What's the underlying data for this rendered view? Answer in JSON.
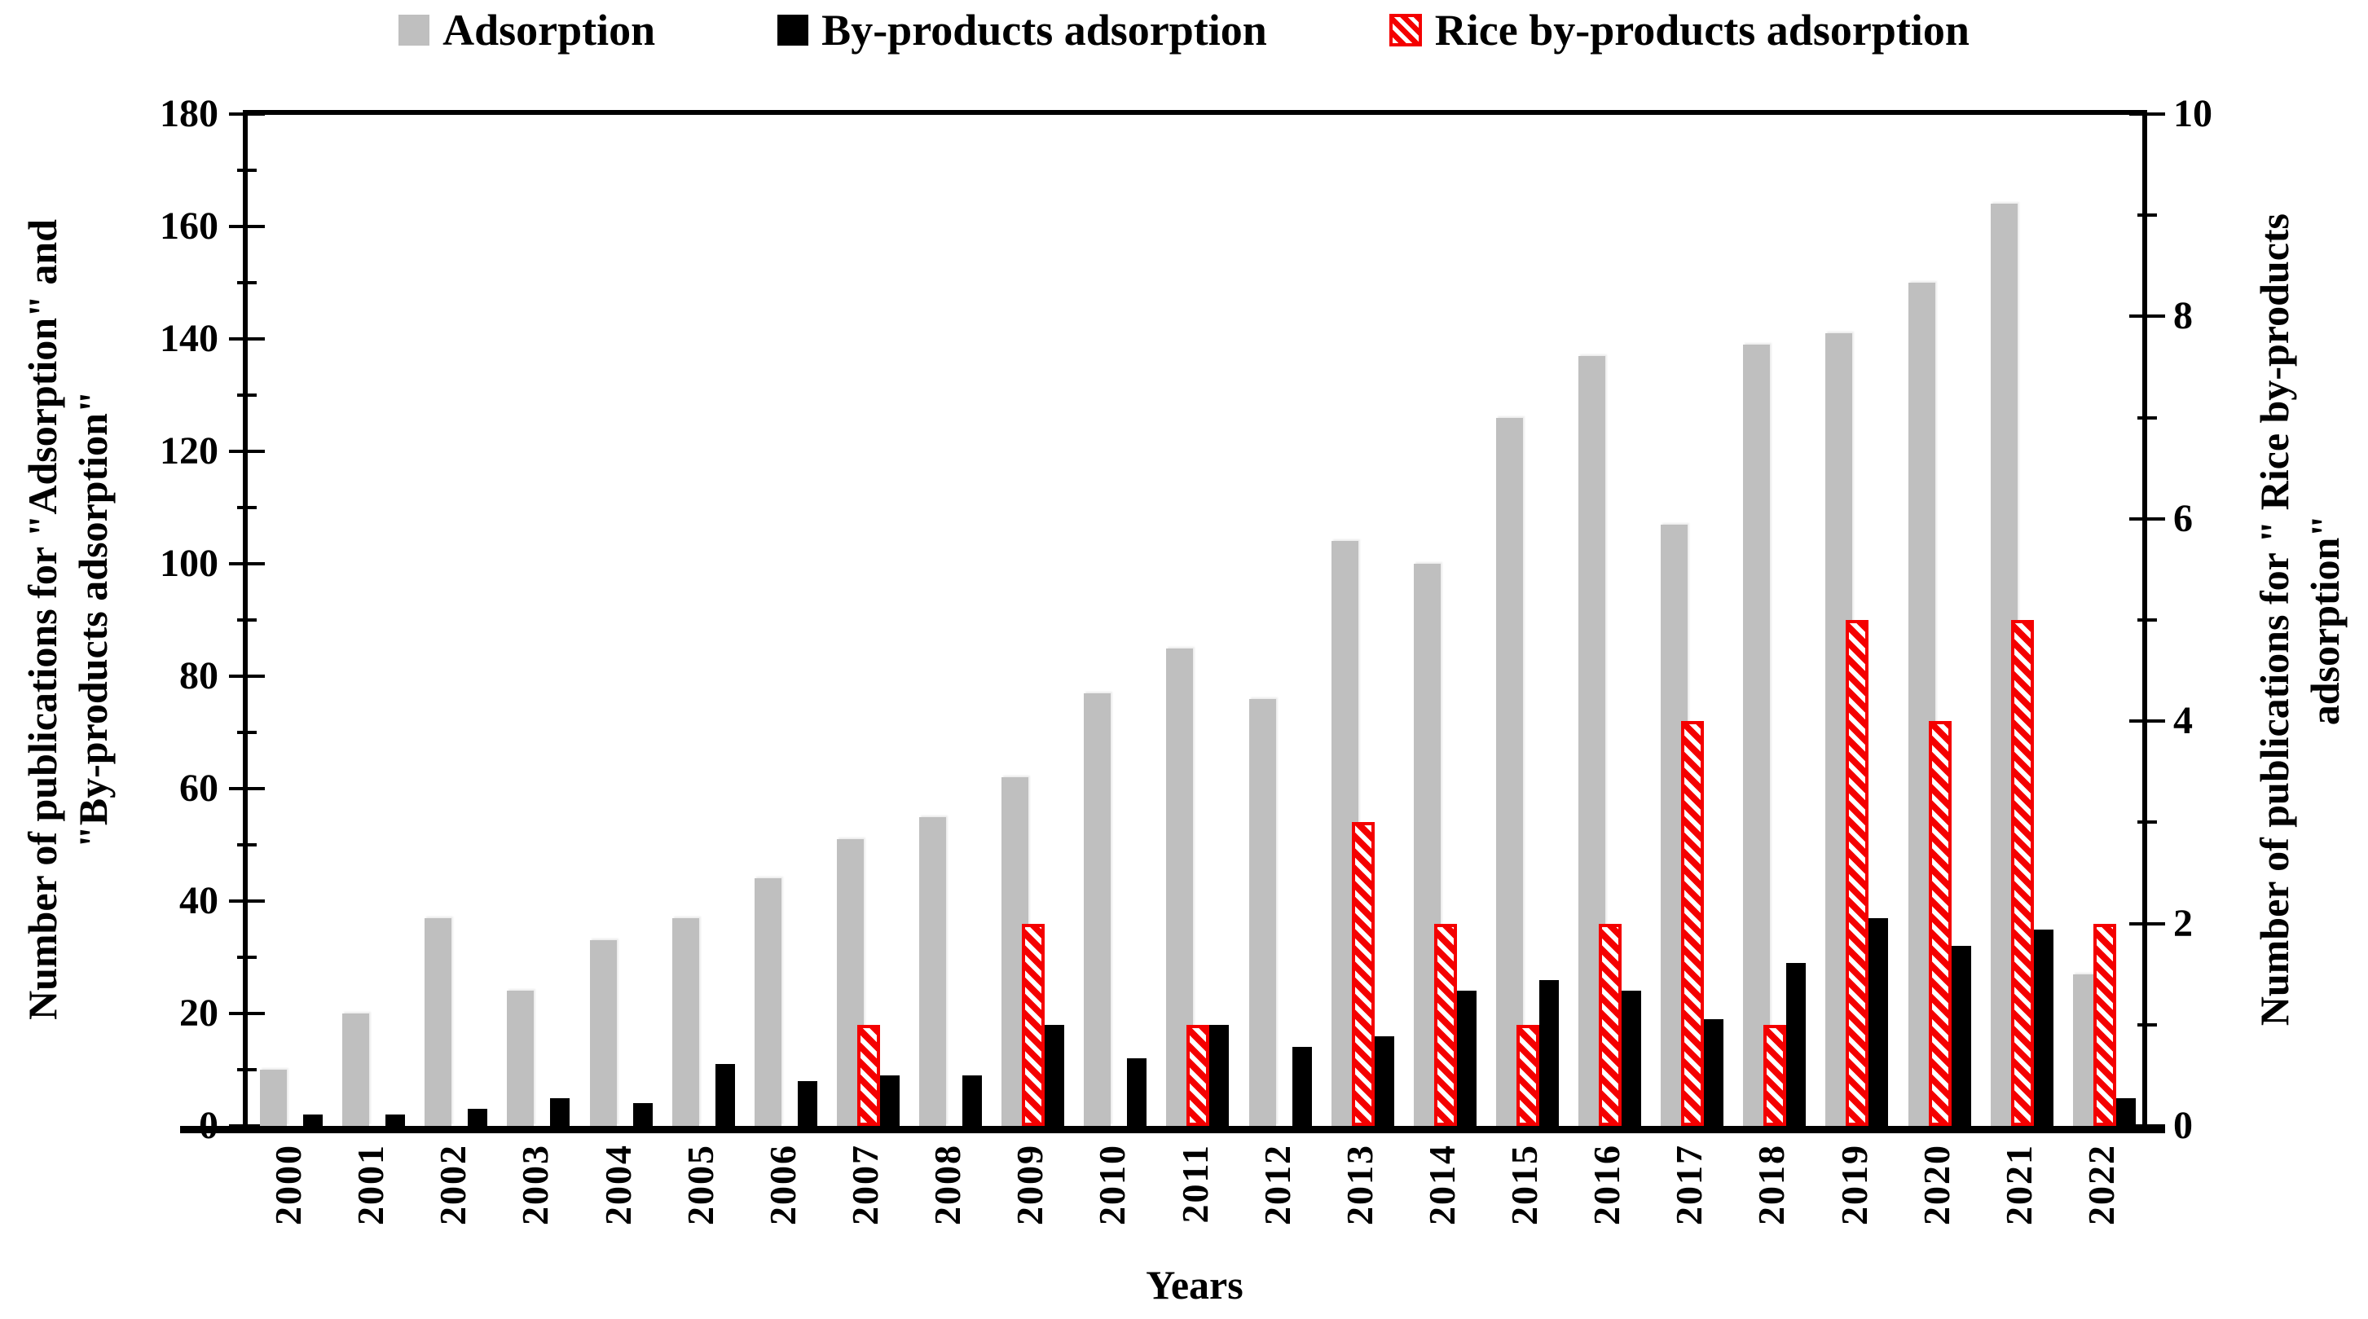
{
  "chart_data": {
    "type": "bar",
    "title": "",
    "categories": [
      "2000",
      "2001",
      "2002",
      "2003",
      "2004",
      "2005",
      "2006",
      "2007",
      "2008",
      "2009",
      "2010",
      "2011",
      "2012",
      "2013",
      "2014",
      "2015",
      "2016",
      "2017",
      "2018",
      "2019",
      "2020",
      "2021",
      "2022"
    ],
    "series": [
      {
        "name": "Adsorption",
        "axis": "left",
        "color": "#bfbfbf",
        "style": "solid",
        "values": [
          10,
          20,
          37,
          24,
          33,
          37,
          44,
          51,
          55,
          62,
          77,
          85,
          76,
          104,
          100,
          126,
          137,
          107,
          139,
          141,
          150,
          164,
          27
        ]
      },
      {
        "name": "By-products adsorption",
        "axis": "left",
        "color": "#000000",
        "style": "solid",
        "values": [
          2,
          2,
          3,
          5,
          4,
          11,
          8,
          9,
          9,
          18,
          12,
          18,
          14,
          16,
          24,
          26,
          24,
          19,
          29,
          37,
          32,
          35,
          5
        ]
      },
      {
        "name": "Rice by-products adsorption",
        "axis": "right",
        "color": "#f40000",
        "style": "hatched",
        "values": [
          null,
          null,
          null,
          null,
          null,
          null,
          null,
          1,
          null,
          2,
          null,
          1,
          null,
          3,
          2,
          1,
          2,
          4,
          1,
          5,
          4,
          5,
          2
        ]
      }
    ],
    "left_axis": {
      "title_line1": "Number of publications for \"Adsorption\" and",
      "title_line2": "\"By-products adsorption\"",
      "min": 0,
      "max": 180,
      "major_tick_step": 20,
      "minor_tick_step": 10,
      "ticks": [
        0,
        20,
        40,
        60,
        80,
        100,
        120,
        140,
        160,
        180
      ]
    },
    "right_axis": {
      "title_line1": "Number of publications for \" Rice by-products",
      "title_line2": "adsorption\"",
      "min": 0,
      "max": 10,
      "major_tick_step": 2,
      "minor_tick_step": 1,
      "ticks": [
        0,
        2,
        4,
        6,
        8,
        10
      ]
    },
    "x_axis": {
      "title": "Years"
    },
    "legend": {
      "position": "top",
      "items": [
        "Adsorption",
        "By-products adsorption",
        "Rice by-products adsorption"
      ]
    },
    "grid": "off"
  }
}
